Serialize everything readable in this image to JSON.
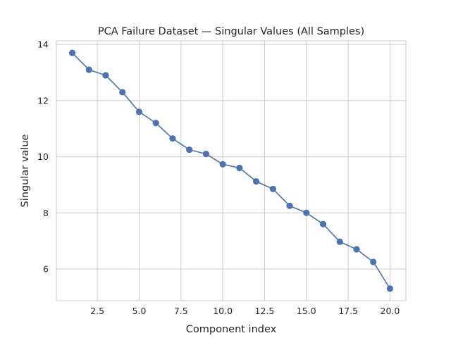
{
  "chart_data": {
    "type": "line",
    "title": "PCA Failure Dataset — Singular Values (All Samples)",
    "xlabel": "Component index",
    "ylabel": "Singular value",
    "xlim": [
      0.05,
      20.95
    ],
    "ylim": [
      4.87,
      14.13
    ],
    "xticks": [
      2.5,
      5.0,
      7.5,
      10.0,
      12.5,
      15.0,
      17.5,
      20.0
    ],
    "xtick_labels": [
      "2.5",
      "5.0",
      "7.5",
      "10.0",
      "12.5",
      "15.0",
      "17.5",
      "20.0"
    ],
    "yticks": [
      6,
      8,
      10,
      12,
      14
    ],
    "ytick_labels": [
      "6",
      "8",
      "10",
      "12",
      "14"
    ],
    "grid": true,
    "line_color": "#4c72b0",
    "series": [
      {
        "x": [
          1,
          2,
          3,
          4,
          5,
          6,
          7,
          8,
          9,
          10,
          11,
          12,
          13,
          14,
          15,
          16,
          17,
          18,
          19,
          20
        ],
        "values": [
          13.7,
          13.1,
          12.9,
          12.3,
          11.6,
          11.2,
          10.65,
          10.25,
          10.1,
          9.73,
          9.6,
          9.12,
          8.85,
          8.25,
          8.0,
          7.6,
          6.97,
          6.7,
          6.25,
          5.3
        ]
      }
    ]
  }
}
